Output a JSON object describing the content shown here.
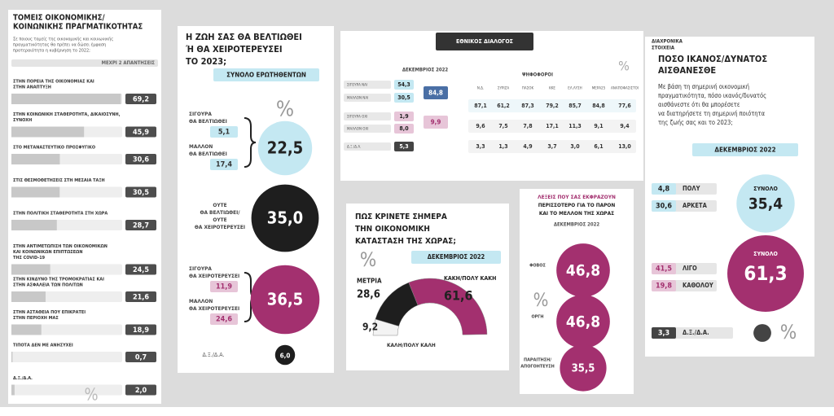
{
  "priorities": {
    "title": [
      "ΤΟΜΕΙΣ ΟΙΚΟΝΟΜΙΚΗΣ/",
      "ΚΟΙΝΩΝΙΚΗΣ ΠΡΑΓΜΑΤΙΚΟΤΗΤΑΣ"
    ],
    "question": [
      "Σε ποιους τομείς της οικονομικής και κοινωνικής",
      "πραγματικότητας θα πρέπει να δώσει έμφαση",
      "προτεραιότητα η κυβέρνηση το 2022;"
    ],
    "note": "ΜΕΧΡΙ 2 ΑΠΑΝΤΗΣΕΙΣ",
    "unit": "%",
    "rows": [
      {
        "label": [
          "ΣΤΗΝ ΠΟΡΕΙΑ ΤΗΣ ΟΙΚΟΝΟΜΙΑΣ ΚΑΙ",
          "ΣΤΗΝ ΑΝΑΠΤΥΞΗ"
        ],
        "value": {
          "value": 69.2,
          "label": "69,2"
        }
      },
      {
        "label": [
          "ΣΤΗΝ ΚΟΙΝΩΝΙΚΗ ΣΤΑΘΕΡΟΤΗΤΑ, ΔΙΚΑΙΟΣΥΝΗ,",
          "ΣΥΝΟΧΗ"
        ],
        "value": {
          "value": 45.9,
          "label": "45,9"
        }
      },
      {
        "label": [
          "ΣΤΟ ΜΕΤΑΝΑΣΤΕΥΤΙΚΟ ΠΡΟΣΦΥΓΙΚΟ"
        ],
        "value": {
          "value": 30.6,
          "label": "30,6"
        }
      },
      {
        "label": [
          "ΣΤΙΣ ΘΕΣΜΟΘΕΤΗΣΕΙΣ ΣΤΗ ΜΕΣΑΙΑ ΤΑΞΗ"
        ],
        "value": {
          "value": 30.5,
          "label": "30,5"
        }
      },
      {
        "label": [
          "ΣΤΗΝ ΠΟΛΙΤΙΚΗ ΣΤΑΘΕΡΟΤΗΤΑ ΣΤΗ ΧΩΡΑ"
        ],
        "value": {
          "value": 28.7,
          "label": "28,7"
        }
      },
      {
        "label": [
          "ΣΤΗΝ ΑΝΤΙΜΕΤΩΠΙΣΗ ΤΩΝ ΟΙΚΟΝΟΜΙΚΩΝ",
          "ΚΑΙ ΚΟΙΝΩΝΙΚΩΝ ΕΠΙΠΤΩΣΕΩΝ",
          "ΤΗΣ COVID-19"
        ],
        "value": {
          "value": 24.5,
          "label": "24,5"
        }
      },
      {
        "label": [
          "ΣΤΗΝ ΚΙΝΔΥΝΟ ΤΗΣ ΤΡΟΜΟΚΡΑΤΙΑΣ ΚΑΙ",
          "ΣΤΗΝ ΑΣΦΑΛΕΙΑ ΤΩΝ ΠΟΛΙΤΩΝ"
        ],
        "value": {
          "value": 21.6,
          "label": "21,6"
        }
      },
      {
        "label": [
          "ΣΤΗΝ ΑΣΤΑΘΕΙΑ ΠΟΥ ΕΠΙΚΡΑΤΕΙ",
          "ΣΤΗΝ ΠΕΡΙΟΧΗ ΜΑΣ"
        ],
        "value": {
          "value": 18.9,
          "label": "18,9"
        }
      },
      {
        "label": [
          "ΤΙΠΟΤΑ ΔΕΝ ΜΕ ΑΝΗΣΥΧΕΙ"
        ],
        "value": {
          "value": 0.7,
          "label": "0,7"
        }
      },
      {
        "label": [
          "Δ.Ξ./Δ.Α."
        ],
        "value": {
          "value": 2.0,
          "label": "2,0"
        }
      }
    ]
  },
  "life2023": {
    "title": [
      "Η ΖΩΗ ΣΑΣ ΘΑ ΒΕΛΤΙΩΘΕΙ",
      "Ή ΘΑ ΧΕΙΡΟΤΕΡΕΥΣΕΙ",
      "ΤΟ 2023;"
    ],
    "subtitle": "ΣΥΝΟΛΟ ΕΡΩΤΗΘΕΝΤΩΝ",
    "unit": "%",
    "better": [
      {
        "label": [
          "ΣΙΓΟΥΡΑ",
          "ΘΑ ΒΕΛΤΙΩΘΕΙ"
        ],
        "value": {
          "value": 5.1,
          "label": "5,1"
        }
      },
      {
        "label": [
          "ΜΑΛΛΟΝ",
          "ΘΑ ΒΕΛΤΙΩΘΕΙ"
        ],
        "value": {
          "value": 17.4,
          "label": "17,4"
        }
      }
    ],
    "better_total": {
      "value": 22.5,
      "label": "22,5"
    },
    "neither": {
      "label": [
        "ΟΥΤΕ",
        "ΘΑ ΒΕΛΤΙΩΘΕΙ/",
        "ΟΥΤΕ",
        "ΘΑ ΧΕΙΡΟΤΕΡΕΥΣΕΙ"
      ],
      "value": {
        "value": 35.0,
        "label": "35,0"
      }
    },
    "worse": [
      {
        "label": [
          "ΣΙΓΟΥΡΑ",
          "ΘΑ ΧΕΙΡΟΤΕΡΕΥΣΕΙ"
        ],
        "value": {
          "value": 11.9,
          "label": "11,9"
        }
      },
      {
        "label": [
          "ΜΑΛΛΟΝ",
          "ΘΑ ΧΕΙΡΟΤΕΡΕΥΣΕΙ"
        ],
        "value": {
          "value": 24.6,
          "label": "24,6"
        }
      }
    ],
    "worse_total": {
      "value": 36.5,
      "label": "36,5"
    },
    "na": {
      "label": "Δ.Ξ./Δ.Α.",
      "value": {
        "value": 6.0,
        "label": "6,0"
      }
    }
  },
  "vote": {
    "header": "ΕΘΝΙΚΟΣ ΔΙΑΛΟΓΟΣ",
    "date": "ΔΕΚΕΜΒΡΙΟΣ 2022",
    "group": "ΨΗΦΟΦΟΡΟΙ",
    "unit": "%",
    "left": [
      {
        "label": "ΣΙΓΟΥΡΑ ΝΑΙ",
        "value": "54,3"
      },
      {
        "label": "ΜΑΛΛΟΝ ΝΑΙ",
        "value": "30,5"
      },
      {
        "label": "ΣΙΓΟΥΡΑ ΟΧΙ",
        "value": "1,9"
      },
      {
        "label": "ΜΑΛΛΟΝ ΟΧΙ",
        "value": "8,0"
      },
      {
        "label": "Δ.Ξ./Δ.Α.",
        "value": "5,3"
      }
    ],
    "yes_total": "84,8",
    "no_total": "9,9",
    "columns": [
      "Ν.Δ.",
      "ΣΥΡΙΖΑ",
      "ΠΑΣΟΚ",
      "ΚΚΕ",
      "ΕΛ.ΛΥΣΗ",
      "ΜΕΡΑ25",
      "ΑΝΑΠΟΦΑΣΙΣΤΟΙ"
    ],
    "rows": [
      [
        "87,1",
        "61,2",
        "87,3",
        "79,2",
        "85,7",
        "84,8",
        "77,6"
      ],
      [
        "9,6",
        "7,5",
        "7,8",
        "17,1",
        "11,3",
        "9,1",
        "9,4"
      ],
      [
        "3,3",
        "1,3",
        "4,9",
        "3,7",
        "3,0",
        "6,1",
        "13,0"
      ]
    ]
  },
  "economy": {
    "title": [
      "ΠΩΣ ΚΡΙΝΕΤΕ ΣΗΜΕΡΑ",
      "ΤΗΝ ΟΙΚΟΝΟΜΙΚΗ",
      "ΚΑΤΑΣΤΑΣΗ ΤΗΣ ΧΩΡΑΣ;"
    ],
    "unit": "%",
    "date": "ΔΕΚΕΜΒΡΙΟΣ 2022",
    "segments": [
      {
        "label": "ΚΑΛΗ/ΠΟΛΥ ΚΑΛΗ",
        "value": {
          "value": 9.2,
          "label": "9,2"
        }
      },
      {
        "label": "ΜΕΤΡΙΑ",
        "value": {
          "value": 28.6,
          "label": "28,6"
        }
      },
      {
        "label": "ΚΑΚΗ/ΠΟΛΥ ΚΑΚΗ",
        "value": {
          "value": 61.6,
          "label": "61,6"
        }
      }
    ]
  },
  "words": {
    "title": [
      "ΛΕΞΕΙΣ ΠΟΥ ΣΑΣ ΕΚΦΡΑΖΟΥΝ",
      "ΠΕΡΙΣΣΟΤΕΡΟ ΓΙΑ ΤΟ ΠΑΡΟΝ",
      "ΚΑΙ ΤΟ ΜΕΛΛΟΝ ΤΗΣ ΧΩΡΑΣ"
    ],
    "date": "ΔΕΚΕΜΒΡΙΟΣ 2022",
    "unit": "%",
    "items": [
      {
        "label": [
          "ΦΟΒΟΣ"
        ],
        "value": {
          "value": 46.8,
          "label": "46,8"
        }
      },
      {
        "label": [
          "ΟΡΓΗ"
        ],
        "value": {
          "value": 46.8,
          "label": "46,8"
        }
      },
      {
        "label": [
          "ΠΑΡΑΙΤΗΣΗ/",
          "ΑΠΟΓΟΗΤΕΥΣΗ"
        ],
        "value": {
          "value": 35.5,
          "label": "35,5"
        }
      }
    ]
  },
  "ability": {
    "kicker": [
      "ΔΙΑΧΡΟΝΙΚΑ",
      "ΣΤΟΙΧΕΙΑ"
    ],
    "title": [
      "ΠΟΣΟ ΙΚΑΝΟΣ/ΔΥΝΑΤΟΣ",
      "ΑΙΣΘΑΝΕΣΘΕ"
    ],
    "question": [
      "Με βάση τη σημερινή οικονομική",
      "πραγματικότητα, πόσο ικανός/δυνατός",
      "αισθάνεστε ότι θα μπορέσετε",
      "να διατηρήσετε τη σημερινή ποιότητα",
      "της ζωής σας και το 2023;"
    ],
    "date": "ΔΕΚΕΜΒΡΙΟΣ 2022",
    "total_label": "ΣΥΝΟΛΟ",
    "unit": "%",
    "high": [
      {
        "label": "ΠΟΛΥ",
        "value": {
          "value": 4.8,
          "label": "4,8"
        }
      },
      {
        "label": "ΑΡΚΕΤΑ",
        "value": {
          "value": 30.6,
          "label": "30,6"
        }
      }
    ],
    "high_total": {
      "value": 35.4,
      "label": "35,4"
    },
    "low": [
      {
        "label": "ΛΙΓΟ",
        "value": {
          "value": 41.5,
          "label": "41,5"
        }
      },
      {
        "label": "ΚΑΘΟΛΟΥ",
        "value": {
          "value": 19.8,
          "label": "19,8"
        }
      }
    ],
    "low_total": {
      "value": 61.3,
      "label": "61,3"
    },
    "na": {
      "label": "Δ.Ξ./Δ.Α.",
      "value": {
        "value": 3.3,
        "label": "3,3"
      }
    }
  }
}
